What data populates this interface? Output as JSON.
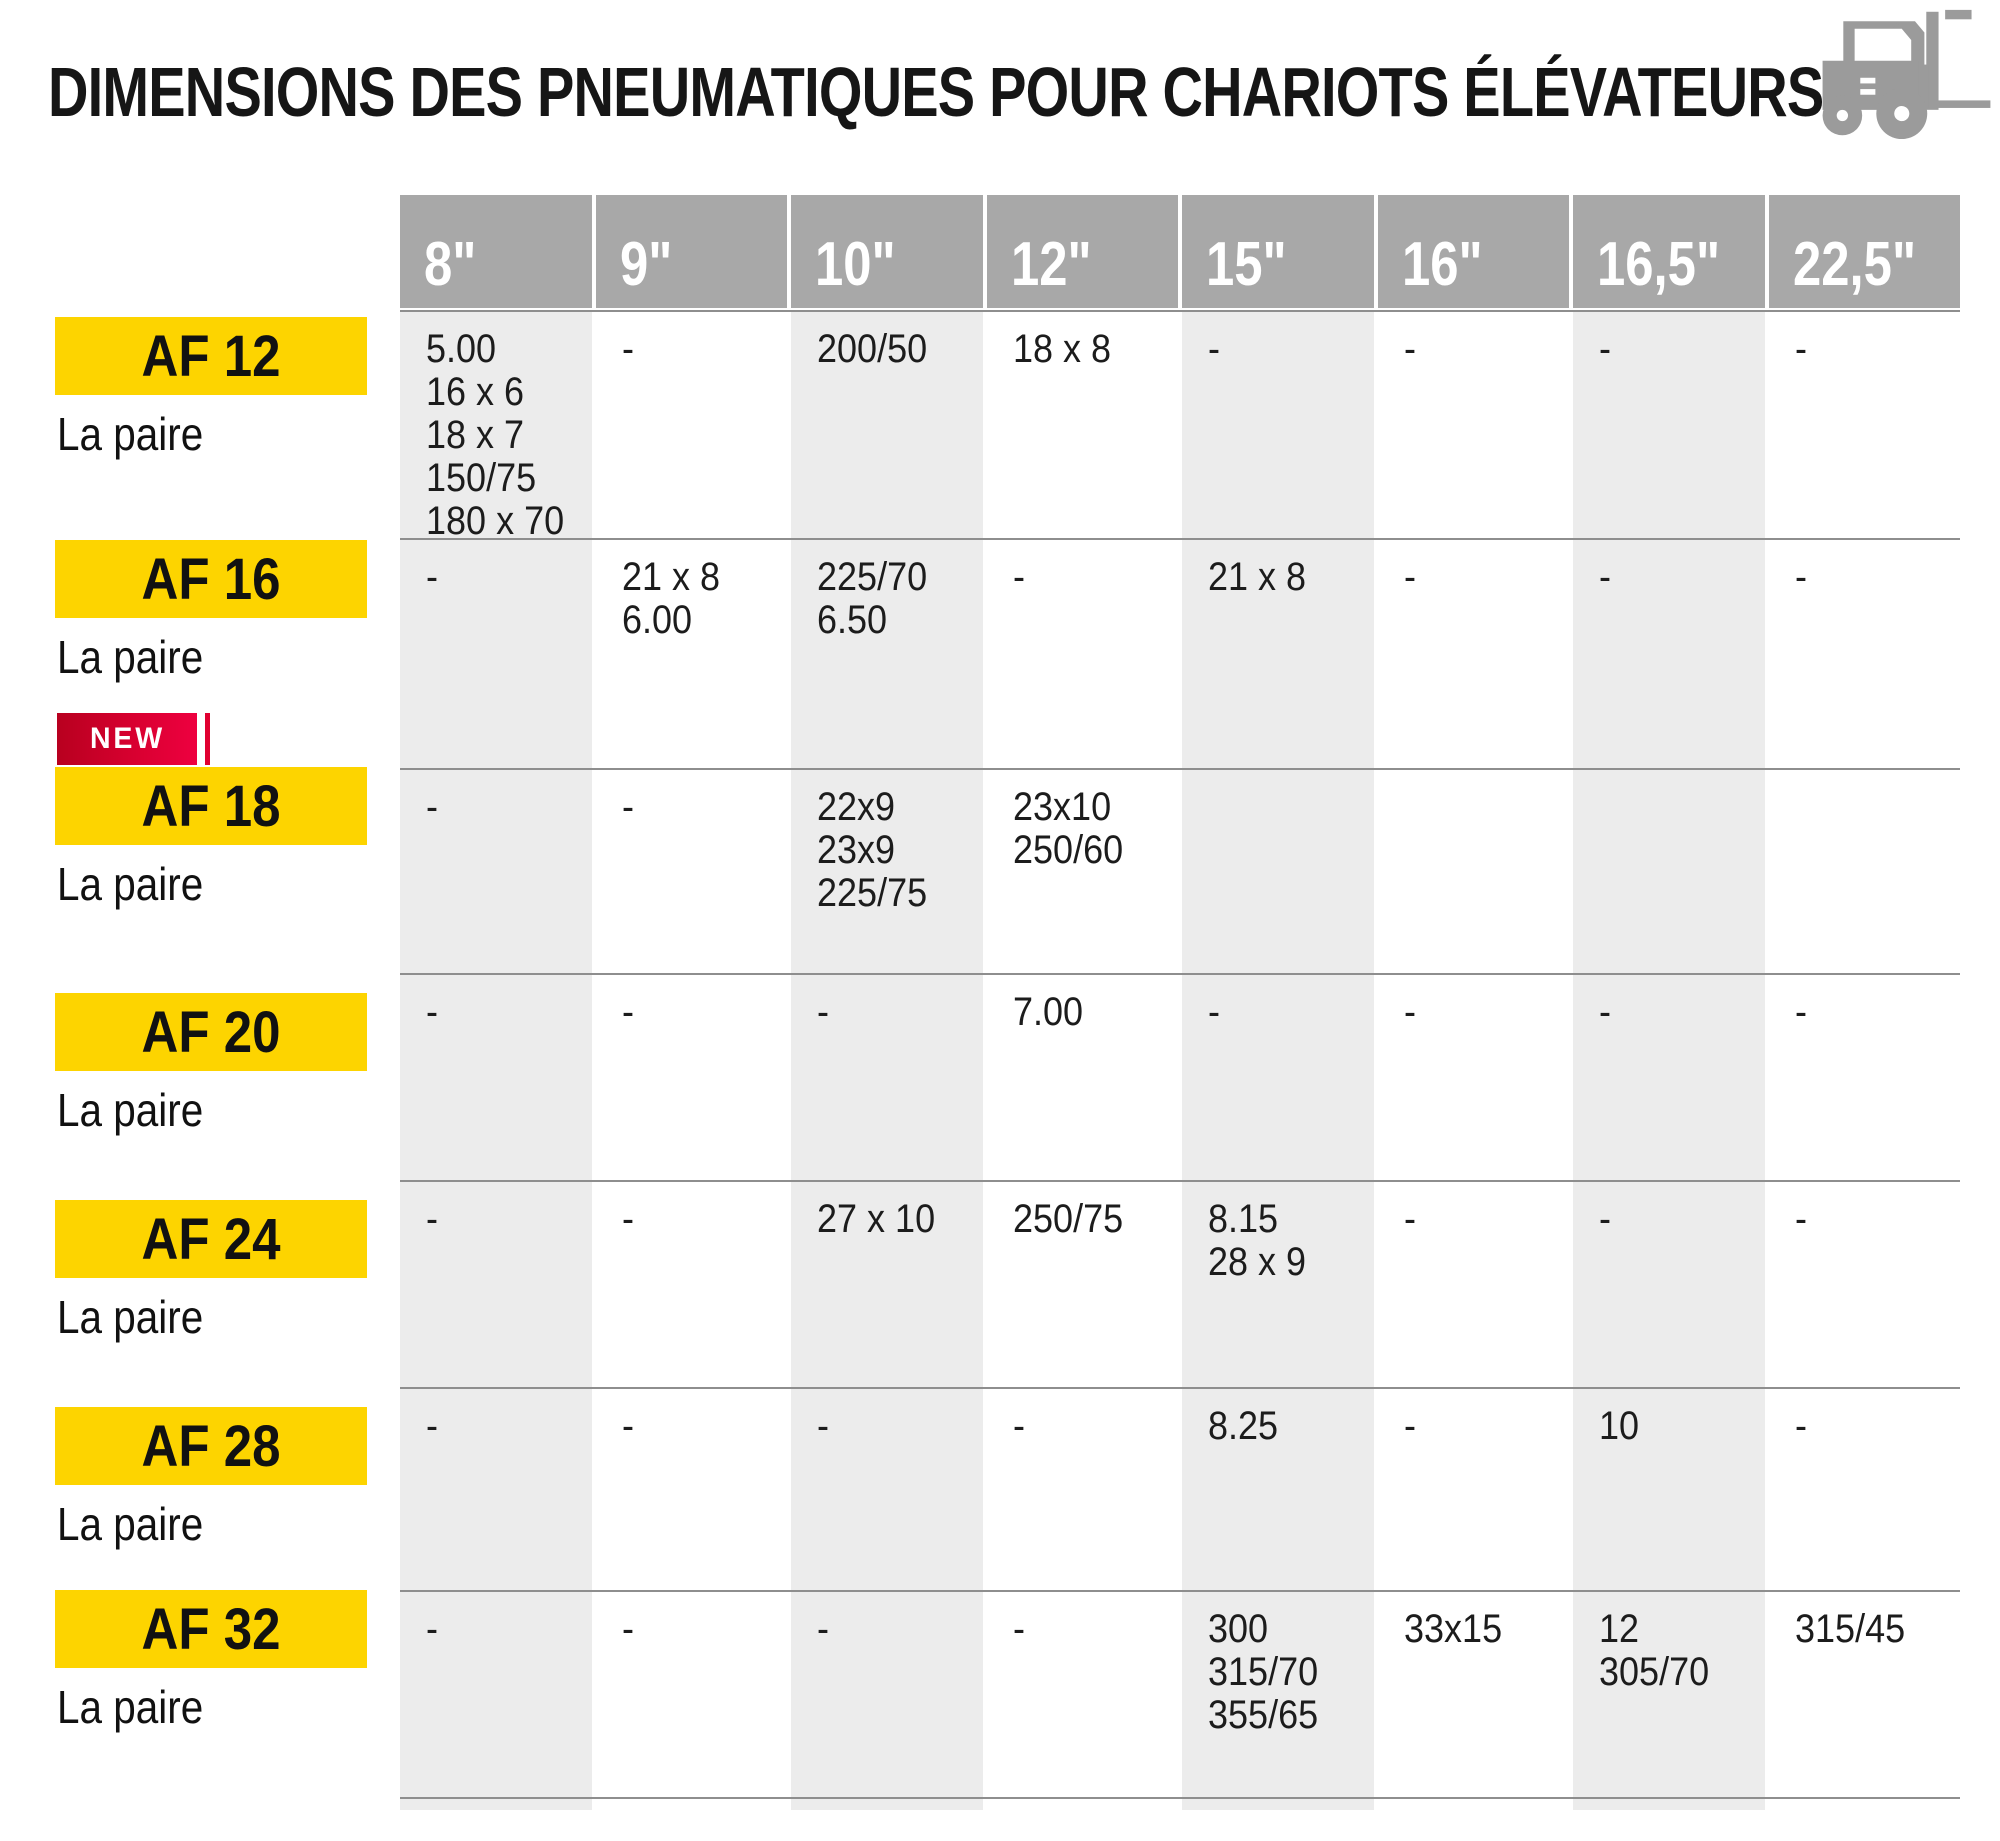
{
  "title": "DIMENSIONS DES PNEUMATIQUES POUR CHARIOTS ÉLÉVATEURS",
  "new_badge_label": "NEW",
  "colors": {
    "badge_yellow": "#fdd400",
    "new_red_start": "#b8001f",
    "new_red_end": "#ee0040",
    "header_gray": "#a8a8a8",
    "band_gray": "#ececec",
    "border_gray": "#8e8e8e",
    "icon_gray": "#9b9b9b"
  },
  "table": {
    "columns": [
      "8\"",
      "9\"",
      "10\"",
      "12\"",
      "15\"",
      "16\"",
      "16,5\"",
      "22,5\""
    ],
    "rows": [
      {
        "product": "AF 12",
        "caption": "La paire",
        "new": false,
        "cells": [
          [
            "5.00",
            "16 x 6",
            "18 x 7",
            "150/75",
            "180 x 70"
          ],
          [
            "-"
          ],
          [
            "200/50"
          ],
          [
            "18 x 8"
          ],
          [
            "-"
          ],
          [
            "-"
          ],
          [
            "-"
          ],
          [
            "-"
          ]
        ]
      },
      {
        "product": "AF 16",
        "caption": "La paire",
        "new": false,
        "cells": [
          [
            "-"
          ],
          [
            "21 x 8",
            "6.00"
          ],
          [
            "225/70",
            "6.50"
          ],
          [
            "-"
          ],
          [
            "21 x 8"
          ],
          [
            "-"
          ],
          [
            "-"
          ],
          [
            "-"
          ]
        ]
      },
      {
        "product": "AF 18",
        "caption": "La paire",
        "new": true,
        "cells": [
          [
            "-"
          ],
          [
            "-"
          ],
          [
            "22x9",
            "23x9",
            "225/75"
          ],
          [
            "23x10",
            "250/60"
          ],
          [],
          [],
          [],
          []
        ]
      },
      {
        "product": "AF 20",
        "caption": "La paire",
        "new": false,
        "cells": [
          [
            "-"
          ],
          [
            "-"
          ],
          [
            "-"
          ],
          [
            "7.00"
          ],
          [
            "-"
          ],
          [
            "-"
          ],
          [
            "-"
          ],
          [
            "-"
          ]
        ]
      },
      {
        "product": "AF 24",
        "caption": "La paire",
        "new": false,
        "cells": [
          [
            "-"
          ],
          [
            "-"
          ],
          [
            "27 x 10"
          ],
          [
            "250/75"
          ],
          [
            "8.15",
            "28 x 9"
          ],
          [
            "-"
          ],
          [
            "-"
          ],
          [
            "-"
          ]
        ]
      },
      {
        "product": "AF 28",
        "caption": "La paire",
        "new": false,
        "cells": [
          [
            "-"
          ],
          [
            "-"
          ],
          [
            "-"
          ],
          [
            "-"
          ],
          [
            "8.25"
          ],
          [
            "-"
          ],
          [
            "10"
          ],
          [
            "-"
          ]
        ]
      },
      {
        "product": "AF 32",
        "caption": "La paire",
        "new": false,
        "cells": [
          [
            "-"
          ],
          [
            "-"
          ],
          [
            "-"
          ],
          [
            "-"
          ],
          [
            "300",
            "315/70",
            "355/65"
          ],
          [
            "33x15"
          ],
          [
            "12",
            "305/70"
          ],
          [
            "315/45"
          ]
        ]
      }
    ]
  }
}
